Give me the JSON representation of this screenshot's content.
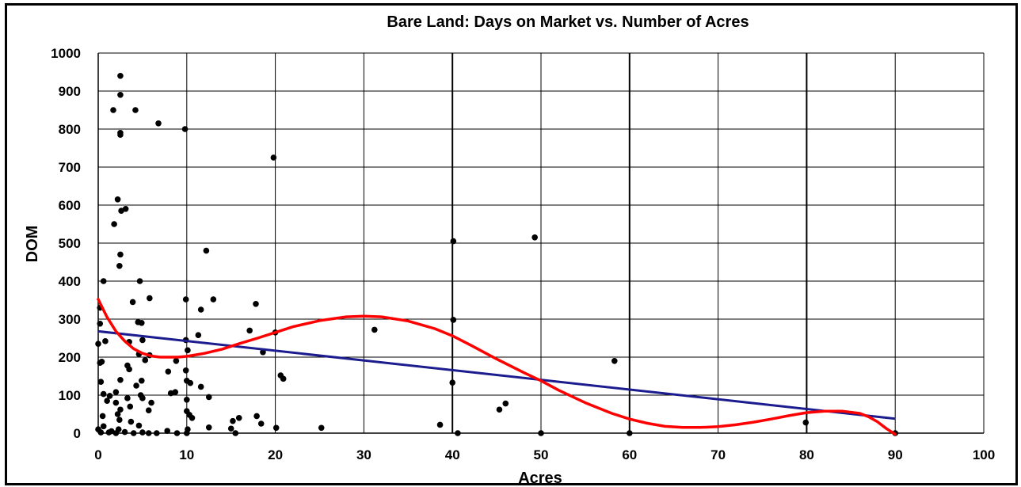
{
  "chart_data": {
    "type": "scatter",
    "title": "Bare Land: Days on Market vs. Number of Acres",
    "xlabel": "Acres",
    "ylabel": "DOM",
    "xlim": [
      0,
      100
    ],
    "ylim": [
      0,
      1000
    ],
    "x_ticks": [
      "0",
      "10",
      "20",
      "30",
      "40",
      "50",
      "60",
      "70",
      "80",
      "90",
      "100"
    ],
    "y_ticks": [
      "0",
      "100",
      "200",
      "300",
      "400",
      "500",
      "600",
      "700",
      "800",
      "900",
      "1000"
    ],
    "grid": true,
    "legend": "none",
    "colors": {
      "points": "#000000",
      "linear_trend": "#1c1c8f",
      "poly_trend": "#ff0000"
    },
    "series": [
      {
        "kind": "points",
        "points": [
          [
            2.5,
            940
          ],
          [
            2.5,
            890
          ],
          [
            1.7,
            850
          ],
          [
            4.2,
            850
          ],
          [
            2.5,
            790
          ],
          [
            2.5,
            785
          ],
          [
            6.8,
            815
          ],
          [
            9.8,
            800
          ],
          [
            19.8,
            725
          ],
          [
            2.2,
            615
          ],
          [
            3.1,
            590
          ],
          [
            2.6,
            585
          ],
          [
            1.8,
            550
          ],
          [
            49.3,
            515
          ],
          [
            40.1,
            505
          ],
          [
            12.2,
            480
          ],
          [
            2.5,
            470
          ],
          [
            2.4,
            440
          ],
          [
            0.6,
            400
          ],
          [
            4.7,
            400
          ],
          [
            5.8,
            355
          ],
          [
            9.9,
            352
          ],
          [
            13.0,
            352
          ],
          [
            3.9,
            345
          ],
          [
            17.8,
            340
          ],
          [
            0.2,
            330
          ],
          [
            11.6,
            325
          ],
          [
            40.1,
            298
          ],
          [
            4.5,
            292
          ],
          [
            4.9,
            290
          ],
          [
            0.2,
            288
          ],
          [
            31.2,
            272
          ],
          [
            17.1,
            270
          ],
          [
            20.0,
            265
          ],
          [
            11.3,
            258
          ],
          [
            5.0,
            245
          ],
          [
            0.8,
            242
          ],
          [
            9.9,
            245
          ],
          [
            3.5,
            240
          ],
          [
            0.0,
            235
          ],
          [
            10.1,
            218
          ],
          [
            5.8,
            205
          ],
          [
            18.6,
            213
          ],
          [
            4.6,
            208
          ],
          [
            5.3,
            192
          ],
          [
            0.4,
            188
          ],
          [
            0.2,
            185
          ],
          [
            58.3,
            190
          ],
          [
            8.8,
            190
          ],
          [
            9.9,
            165
          ],
          [
            3.3,
            178
          ],
          [
            3.5,
            168
          ],
          [
            7.9,
            162
          ],
          [
            20.6,
            152
          ],
          [
            20.9,
            143
          ],
          [
            4.9,
            138
          ],
          [
            0.3,
            135
          ],
          [
            2.5,
            140
          ],
          [
            10.0,
            138
          ],
          [
            40.0,
            133
          ],
          [
            10.4,
            132
          ],
          [
            11.6,
            122
          ],
          [
            4.3,
            125
          ],
          [
            2.0,
            108
          ],
          [
            8.2,
            105
          ],
          [
            8.7,
            108
          ],
          [
            0.6,
            103
          ],
          [
            1.3,
            98
          ],
          [
            4.8,
            100
          ],
          [
            3.3,
            92
          ],
          [
            5.0,
            92
          ],
          [
            10.0,
            88
          ],
          [
            12.5,
            95
          ],
          [
            1.0,
            85
          ],
          [
            2.0,
            80
          ],
          [
            46.0,
            78
          ],
          [
            6.0,
            80
          ],
          [
            3.6,
            70
          ],
          [
            2.5,
            62
          ],
          [
            5.7,
            60
          ],
          [
            10.0,
            58
          ],
          [
            2.2,
            50
          ],
          [
            10.3,
            48
          ],
          [
            0.5,
            45
          ],
          [
            17.9,
            45
          ],
          [
            10.6,
            40
          ],
          [
            15.9,
            40
          ],
          [
            15.2,
            32
          ],
          [
            2.4,
            35
          ],
          [
            3.7,
            30
          ],
          [
            79.9,
            28
          ],
          [
            38.6,
            22
          ],
          [
            18.4,
            25
          ],
          [
            4.6,
            20
          ],
          [
            0.6,
            18
          ],
          [
            12.5,
            15
          ],
          [
            20.1,
            14
          ],
          [
            25.2,
            14
          ],
          [
            15.0,
            12
          ],
          [
            45.3,
            62
          ],
          [
            2.3,
            10
          ],
          [
            0.0,
            10
          ],
          [
            1.5,
            5
          ],
          [
            0.3,
            2
          ],
          [
            1.2,
            2
          ],
          [
            2.0,
            0
          ],
          [
            3.0,
            3
          ],
          [
            4.0,
            0
          ],
          [
            5.0,
            2
          ],
          [
            5.7,
            0
          ],
          [
            6.6,
            0
          ],
          [
            7.8,
            6
          ],
          [
            8.9,
            0
          ],
          [
            10.0,
            0
          ],
          [
            10.1,
            10
          ],
          [
            15.5,
            0
          ],
          [
            40.6,
            0
          ],
          [
            50.0,
            0
          ],
          [
            60.0,
            0
          ],
          [
            90.0,
            0
          ]
        ]
      },
      {
        "kind": "linear_trend",
        "x": [
          0,
          90
        ],
        "y": [
          268,
          38
        ]
      },
      {
        "kind": "polynomial_trend",
        "x": [
          0,
          1,
          2,
          3,
          4,
          5,
          6,
          7,
          8,
          9,
          10,
          12,
          14,
          16,
          18,
          20,
          22,
          25,
          28,
          30,
          32,
          35,
          38,
          40,
          42,
          45,
          48,
          50,
          52,
          55,
          58,
          60,
          62,
          64,
          66,
          68,
          70,
          72,
          74,
          76,
          78,
          80,
          82,
          84,
          86,
          87,
          88,
          89,
          90
        ],
        "y": [
          352,
          305,
          268,
          242,
          222,
          210,
          203,
          200,
          200,
          200,
          202,
          210,
          221,
          236,
          250,
          265,
          280,
          296,
          306,
          308,
          306,
          295,
          275,
          256,
          232,
          195,
          160,
          138,
          113,
          80,
          52,
          37,
          26,
          18,
          15,
          15,
          17,
          22,
          29,
          37,
          46,
          54,
          58,
          58,
          52,
          43,
          30,
          12,
          -3
        ]
      }
    ]
  }
}
